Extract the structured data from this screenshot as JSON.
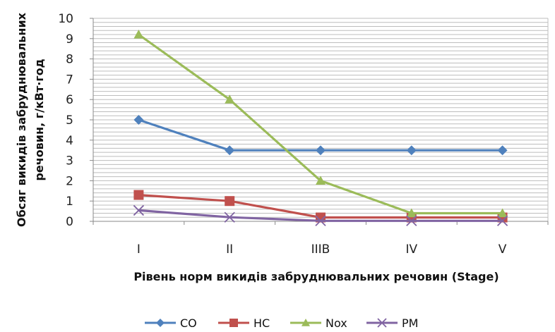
{
  "chart_data": {
    "type": "line",
    "categories": [
      "I",
      "II",
      "IIIB",
      "IV",
      "V"
    ],
    "series": [
      {
        "name": "CO",
        "values": [
          5,
          3.5,
          3.5,
          3.5,
          3.5
        ],
        "color": "#4f81bd",
        "marker": "diamond"
      },
      {
        "name": "HC",
        "values": [
          1.3,
          1,
          0.19,
          0.19,
          0.19
        ],
        "color": "#c0504d",
        "marker": "square"
      },
      {
        "name": "Nox",
        "values": [
          9.2,
          6,
          2,
          0.4,
          0.4
        ],
        "color": "#9bbb59",
        "marker": "triangle"
      },
      {
        "name": "PM",
        "values": [
          0.54,
          0.2,
          0.025,
          0.025,
          0.025
        ],
        "color": "#8064a2",
        "marker": "x"
      }
    ],
    "xlabel": "Рівень норм викидів забруднювальних речовин (Stage)",
    "ylabel_lines": [
      "Обсяг викидів забруднювальних",
      "речовин, г/кВт·год"
    ],
    "ylim": [
      0,
      10
    ],
    "yticks": [
      0,
      1,
      2,
      3,
      4,
      5,
      6,
      7,
      8,
      9,
      10
    ],
    "grid": true,
    "minor_grid_step": 0.2,
    "legend_position": "bottom"
  }
}
